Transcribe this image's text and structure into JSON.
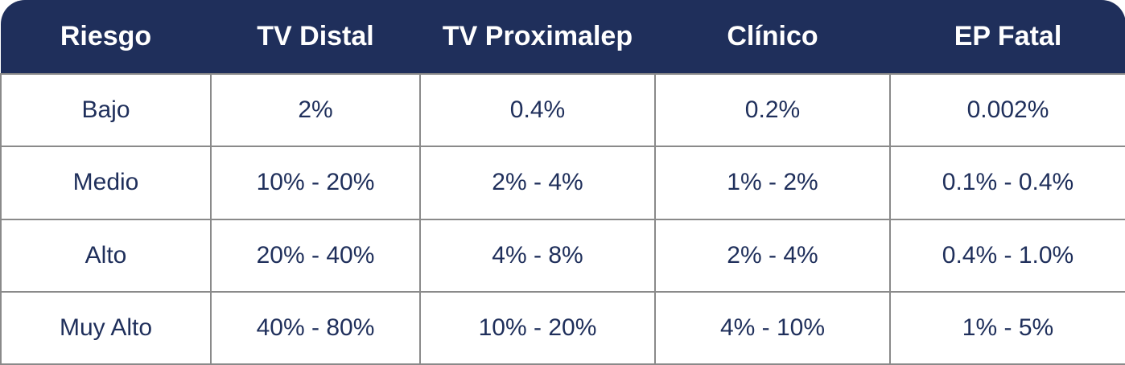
{
  "table": {
    "headers": [
      "Riesgo",
      "TV Distal",
      "TV Proximalep",
      "Clínico",
      "EP Fatal"
    ],
    "rows": [
      [
        "Bajo",
        "2%",
        "0.4%",
        "0.2%",
        "0.002%"
      ],
      [
        "Medio",
        "10% - 20%",
        "2% - 4%",
        "1% - 2%",
        "0.1% - 0.4%"
      ],
      [
        "Alto",
        "20% - 40%",
        "4% - 8%",
        "2% - 4%",
        "0.4% - 1.0%"
      ],
      [
        "Muy Alto",
        "40% - 80%",
        "10% - 20%",
        "4% - 10%",
        "1% - 5%"
      ]
    ]
  },
  "colors": {
    "header_bg": "#1f2f5b",
    "header_text": "#ffffff",
    "cell_text": "#1f2f5b",
    "border": "#8a8a8a"
  }
}
